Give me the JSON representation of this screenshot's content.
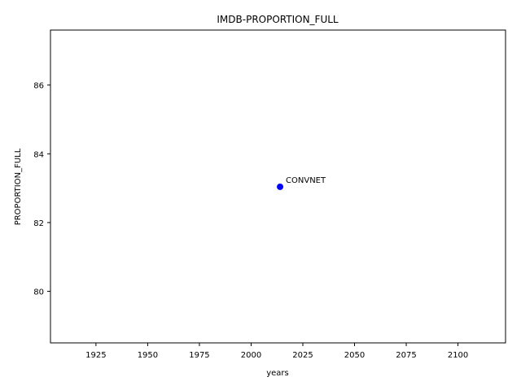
{
  "chart_data": {
    "type": "scatter",
    "title": "IMDB-PROPORTION_FULL",
    "xlabel": "years",
    "ylabel": "PROPORTION_FULL",
    "xlim": [
      1903,
      2123
    ],
    "ylim": [
      78.5,
      87.6
    ],
    "x_ticks": [
      1925,
      1950,
      1975,
      2000,
      2025,
      2050,
      2075,
      2100
    ],
    "y_ticks": [
      80,
      82,
      84,
      86
    ],
    "points": [
      {
        "x": 2014,
        "y": 83.04,
        "label": "CONVNET",
        "color": "#0000ff"
      }
    ],
    "grid": false,
    "legend": "none"
  }
}
